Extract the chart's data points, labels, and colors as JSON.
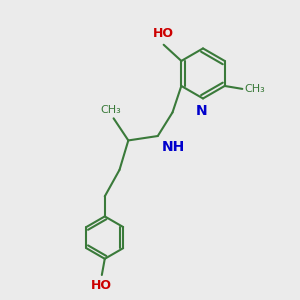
{
  "bg_color": "#ebebeb",
  "bond_color": "#3a7a3a",
  "N_color": "#0000cc",
  "O_color": "#cc0000",
  "bond_width": 1.5,
  "font_size": 9,
  "fig_size": [
    3.0,
    3.0
  ],
  "dpi": 100,
  "xlim": [
    0,
    10
  ],
  "ylim": [
    0,
    10
  ]
}
